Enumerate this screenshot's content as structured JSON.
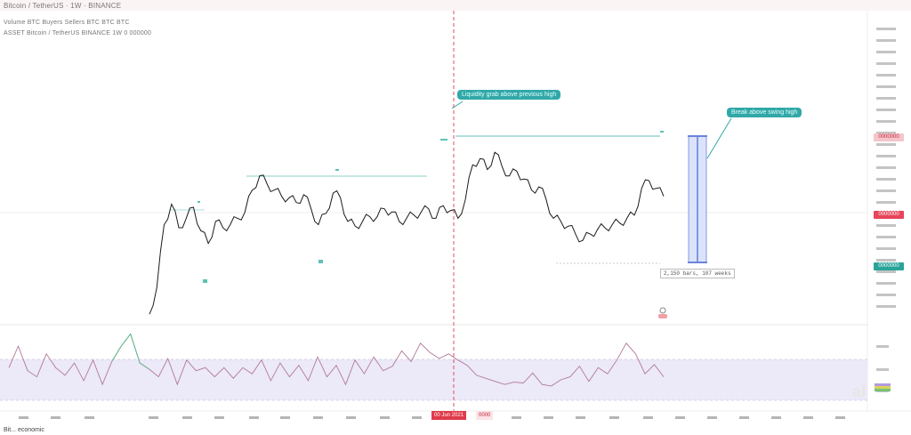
{
  "header": {
    "line1": "Bitcoin / TetherUS · 1W · BINANCE",
    "line2": "Volume   BTC   Buyers   Sellers   BTC   BTC   BTC",
    "line3": "ASSET  Bitcoin / TetherUS  BINANCE  1W  0  000000"
  },
  "annotations": {
    "callout_top": "Liquidity grab above previous high",
    "callout_right": "Break above swing high",
    "measure_label": "2,150 bars, 107 weeks"
  },
  "price_tags": {
    "top": "0000000",
    "current": "0000000",
    "low": "0000000"
  },
  "time_tag": "00 Jun 2021",
  "time_tag2": "0000",
  "footer_text": "Bit... economic",
  "watermark": "al",
  "colors": {
    "price": "#1a1a1a",
    "level": "#5fc1b7",
    "crosshair": "#e03a4a",
    "rsi": "#b07a9a",
    "rsi_band": "#e8e4f5",
    "measure": "#6b83d9",
    "callout": "#31a8a8",
    "price_tag_red": "#e6455a",
    "price_tag_teal": "#2aa39a"
  },
  "chart_data": [
    {
      "type": "line",
      "title": "",
      "xlabel": "",
      "ylabel": "",
      "x_index": [
        0,
        1,
        2,
        3,
        4,
        5,
        6,
        7,
        8,
        9,
        10,
        11,
        12,
        13,
        14,
        15,
        16,
        17,
        18,
        19,
        20,
        21,
        22,
        23,
        24,
        25,
        26,
        27,
        28,
        29,
        30,
        31,
        32,
        33,
        34,
        35,
        36,
        37,
        38,
        39,
        40,
        41,
        42,
        43,
        44,
        45,
        46,
        47,
        48,
        49,
        50,
        51,
        52,
        53,
        54,
        55,
        56,
        57,
        58,
        59,
        60,
        61,
        62,
        63,
        64,
        65,
        66,
        67,
        68,
        69,
        70
      ],
      "series": [
        {
          "values": [
            5,
            22,
            62,
            75,
            60,
            66,
            73,
            58,
            50,
            64,
            60,
            62,
            66,
            70,
            84,
            93,
            88,
            84,
            80,
            79,
            76,
            81,
            72,
            62,
            69,
            82,
            79,
            64,
            61,
            64,
            67,
            67,
            72,
            70,
            64,
            66,
            68,
            70,
            72,
            66,
            74,
            71,
            66,
            78,
            100,
            104,
            97,
            108,
            99,
            93,
            96,
            91,
            84,
            86,
            78,
            66,
            64,
            61,
            56,
            52,
            56,
            59,
            60,
            62,
            63,
            66,
            68,
            85,
            90,
            85,
            80
          ]
        }
      ],
      "ylim": [
        0,
        120
      ],
      "grid": false
    },
    {
      "type": "line",
      "title": "",
      "series": [
        {
          "values": [
            52,
            80,
            48,
            40,
            70,
            52,
            42,
            58,
            35,
            62,
            30,
            60,
            80,
            96,
            58,
            50,
            40,
            64,
            30,
            62,
            48,
            52,
            40,
            52,
            38,
            52,
            44,
            62,
            35,
            58,
            40,
            55,
            35,
            66,
            40,
            55,
            30,
            62,
            44,
            66,
            48,
            54,
            74,
            60,
            84,
            72,
            64,
            70,
            62,
            55,
            42,
            38,
            34,
            30,
            33,
            32,
            45,
            30,
            28,
            36,
            40,
            54,
            34,
            52,
            44,
            62,
            84,
            70,
            44,
            56,
            40
          ]
        }
      ],
      "ylim": [
        0,
        100
      ],
      "bands": [
        30,
        70
      ]
    }
  ]
}
